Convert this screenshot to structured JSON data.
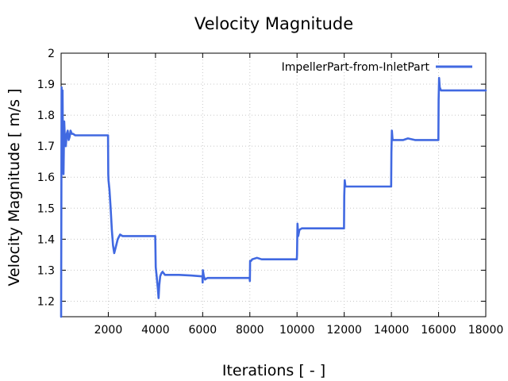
{
  "chart_data": {
    "type": "line",
    "title": "Velocity Magnitude",
    "xlabel": "Iterations [ - ]",
    "ylabel": "Velocity Magnitude [ m/s ]",
    "xlim": [
      0,
      18000
    ],
    "ylim": [
      1.15,
      2.0
    ],
    "xticks": [
      2000,
      4000,
      6000,
      8000,
      10000,
      12000,
      14000,
      16000,
      18000
    ],
    "yticks": [
      1.2,
      1.3,
      1.4,
      1.5,
      1.6,
      1.7,
      1.8,
      1.9,
      2
    ],
    "grid": true,
    "legend_position": "top-right",
    "series": [
      {
        "name": "ImpellerPart-from-InletPart",
        "color": "#4169e1",
        "x": [
          0,
          20,
          40,
          60,
          80,
          100,
          130,
          160,
          200,
          240,
          280,
          320,
          360,
          400,
          450,
          500,
          600,
          800,
          1000,
          1500,
          1990,
          2000,
          2010,
          2050,
          2100,
          2150,
          2200,
          2250,
          2300,
          2400,
          2500,
          2600,
          2700,
          2800,
          3000,
          3500,
          3990,
          4000,
          4010,
          4050,
          4100,
          4130,
          4160,
          4200,
          4250,
          4300,
          4350,
          4400,
          4500,
          4600,
          4800,
          5000,
          5500,
          5990,
          6000,
          6010,
          6050,
          6100,
          6200,
          6300,
          6500,
          7000,
          7990,
          8000,
          8010,
          8050,
          8100,
          8300,
          8500,
          9000,
          9500,
          9990,
          10000,
          10020,
          10050,
          10100,
          10200,
          10500,
          11000,
          11990,
          12000,
          12020,
          12050,
          12100,
          12500,
          13000,
          13990,
          14000,
          14020,
          14050,
          14100,
          14500,
          14700,
          15000,
          15500,
          15990,
          16000,
          16020,
          16050,
          16100,
          16500,
          17000,
          17500,
          18000
        ],
        "y": [
          1.15,
          1.89,
          1.75,
          1.88,
          1.65,
          1.61,
          1.78,
          1.72,
          1.7,
          1.74,
          1.75,
          1.72,
          1.73,
          1.75,
          1.74,
          1.74,
          1.735,
          1.735,
          1.735,
          1.735,
          1.735,
          1.61,
          1.59,
          1.56,
          1.5,
          1.43,
          1.38,
          1.355,
          1.37,
          1.4,
          1.415,
          1.41,
          1.41,
          1.41,
          1.41,
          1.41,
          1.41,
          1.36,
          1.31,
          1.28,
          1.24,
          1.21,
          1.25,
          1.28,
          1.29,
          1.295,
          1.29,
          1.285,
          1.285,
          1.285,
          1.285,
          1.285,
          1.283,
          1.28,
          1.26,
          1.3,
          1.28,
          1.27,
          1.275,
          1.275,
          1.275,
          1.275,
          1.275,
          1.265,
          1.33,
          1.33,
          1.335,
          1.34,
          1.335,
          1.335,
          1.335,
          1.335,
          1.35,
          1.45,
          1.41,
          1.43,
          1.435,
          1.435,
          1.435,
          1.435,
          1.54,
          1.59,
          1.57,
          1.57,
          1.57,
          1.57,
          1.57,
          1.68,
          1.75,
          1.72,
          1.72,
          1.72,
          1.725,
          1.72,
          1.72,
          1.72,
          1.85,
          1.92,
          1.89,
          1.88,
          1.88,
          1.88,
          1.88,
          1.88
        ]
      }
    ]
  }
}
